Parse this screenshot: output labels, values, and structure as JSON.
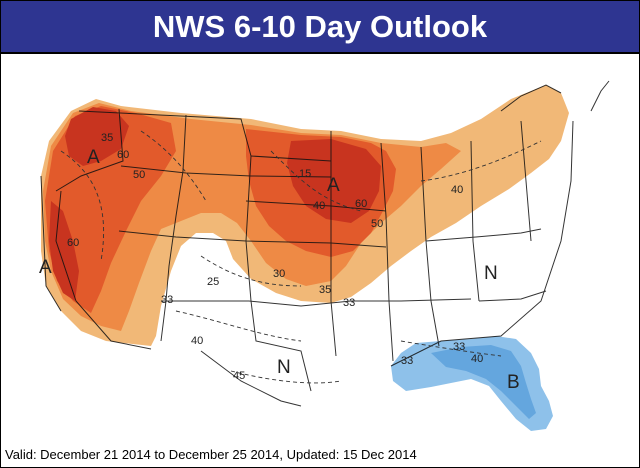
{
  "header": {
    "title": "NWS 6-10 Day Outlook"
  },
  "footer": {
    "valid_text": "Valid: December 21 2014 to December 25 2014, Updated: 15 Dec 2014"
  },
  "colors": {
    "above_60": "#c8341f",
    "above_50": "#e25a2b",
    "above_40": "#ee8a45",
    "above_33": "#f1b877",
    "near_normal": "#ffffff",
    "below_33": "#8ec1ea",
    "below_40": "#64a6de",
    "title_bar": "#2e3591"
  },
  "map": {
    "region_labels": [
      {
        "id": "a-pacific-nw",
        "text": "A"
      },
      {
        "id": "a-california",
        "text": "A"
      },
      {
        "id": "a-upper-midwest",
        "text": "A"
      },
      {
        "id": "n-southwest",
        "text": "N"
      },
      {
        "id": "n-east",
        "text": "N"
      },
      {
        "id": "b-florida",
        "text": "B"
      }
    ],
    "contour_labels": [
      {
        "id": "pnw-35",
        "text": "35"
      },
      {
        "id": "pnw-60",
        "text": "60"
      },
      {
        "id": "west-50",
        "text": "50"
      },
      {
        "id": "ca-60",
        "text": "60"
      },
      {
        "id": "mw-15",
        "text": "15"
      },
      {
        "id": "mw-40",
        "text": "40"
      },
      {
        "id": "mw-60",
        "text": "60"
      },
      {
        "id": "mw-50",
        "text": "50"
      },
      {
        "id": "ne-40",
        "text": "40"
      },
      {
        "id": "sw-25",
        "text": "25"
      },
      {
        "id": "sw-33",
        "text": "33"
      },
      {
        "id": "plains-30",
        "text": "30"
      },
      {
        "id": "plains-35",
        "text": "35"
      },
      {
        "id": "plains-33",
        "text": "33"
      },
      {
        "id": "sw-40",
        "text": "40"
      },
      {
        "id": "tx-45",
        "text": "45"
      },
      {
        "id": "gulf-33",
        "text": "33"
      },
      {
        "id": "se-33",
        "text": "33"
      },
      {
        "id": "se-40",
        "text": "40"
      }
    ]
  }
}
